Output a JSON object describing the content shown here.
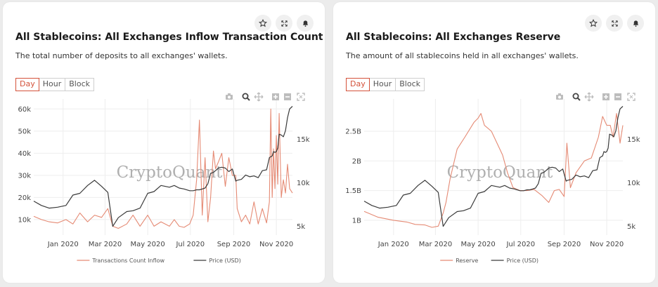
{
  "colors": {
    "inflow": "#e58a74",
    "price": "#3a3a3a",
    "accent": "#d4523a"
  },
  "icons": [
    "star-icon",
    "expand-icon",
    "bell-icon"
  ],
  "watermark": "CryptoQuant",
  "periods": [
    "Day",
    "Hour",
    "Block"
  ],
  "active_period": "Day",
  "modebar": [
    "camera-icon",
    "zoom-icon",
    "pan-icon",
    "zoom-in-icon",
    "zoom-out-icon",
    "autoscale-icon"
  ],
  "cards": [
    {
      "title": "All Stablecoins: All Exchanges Inflow Transaction Count",
      "subtitle": "The total number of deposits to all exchanges' wallets."
    },
    {
      "title": "All Stablecoins: All Exchanges Reserve",
      "subtitle": "The amount of all stablecoins held in all exchanges' wallets."
    }
  ],
  "chart_data": [
    {
      "type": "line",
      "x_ticks": [
        "Jan 2020",
        "Mar 2020",
        "May 2020",
        "Jul 2020",
        "Sep 2020",
        "Nov 2020"
      ],
      "y_left_ticks": [
        "10k",
        "20k",
        "30k",
        "40k",
        "50k",
        "60k"
      ],
      "y_right_ticks": [
        "5k",
        "10k",
        "15k"
      ],
      "y_left_range": [
        3000,
        62000
      ],
      "y_right_range": [
        4000,
        19000
      ],
      "legend": [
        "Transactions Count Inflow",
        "Price (USD)"
      ],
      "legend_position": "bottom",
      "grid": true,
      "series": [
        {
          "name": "Transactions Count Inflow",
          "axis": "left",
          "x": [
            "2019-11-20",
            "2019-12-01",
            "2019-12-12",
            "2019-12-24",
            "2020-01-05",
            "2020-01-15",
            "2020-01-25",
            "2020-02-05",
            "2020-02-15",
            "2020-02-25",
            "2020-03-05",
            "2020-03-12",
            "2020-03-20",
            "2020-04-01",
            "2020-04-10",
            "2020-04-20",
            "2020-05-01",
            "2020-05-10",
            "2020-05-20",
            "2020-06-01",
            "2020-06-08",
            "2020-06-15",
            "2020-06-22",
            "2020-06-30",
            "2020-07-05",
            "2020-07-10",
            "2020-07-14",
            "2020-07-18",
            "2020-07-22",
            "2020-07-26",
            "2020-07-30",
            "2020-08-03",
            "2020-08-06",
            "2020-08-10",
            "2020-08-15",
            "2020-08-20",
            "2020-08-25",
            "2020-08-30",
            "2020-09-04",
            "2020-09-06",
            "2020-09-12",
            "2020-09-18",
            "2020-09-24",
            "2020-09-30",
            "2020-10-06",
            "2020-10-12",
            "2020-10-18",
            "2020-10-22",
            "2020-10-24",
            "2020-10-26",
            "2020-10-28",
            "2020-10-30",
            "2020-11-01",
            "2020-11-03",
            "2020-11-05",
            "2020-11-08",
            "2020-11-11",
            "2020-11-14",
            "2020-11-17",
            "2020-11-20",
            "2020-11-24"
          ],
          "y": [
            11500,
            10000,
            9000,
            8500,
            10000,
            8000,
            13000,
            9000,
            12000,
            11000,
            15000,
            7000,
            6000,
            8000,
            12000,
            7000,
            12000,
            7000,
            9000,
            7000,
            10000,
            7000,
            6500,
            8000,
            12000,
            28000,
            55000,
            12000,
            38000,
            9000,
            20000,
            41000,
            33000,
            36000,
            40000,
            25000,
            38000,
            30000,
            30000,
            15000,
            9000,
            12000,
            8000,
            18000,
            8000,
            15000,
            8500,
            18000,
            60000,
            20000,
            42000,
            24000,
            48000,
            26000,
            58000,
            20000,
            28000,
            22000,
            35000,
            24000,
            22000
          ]
        },
        {
          "name": "Price (USD)",
          "axis": "right",
          "x": [
            "2019-11-20",
            "2019-12-01",
            "2019-12-12",
            "2019-12-24",
            "2020-01-05",
            "2020-01-15",
            "2020-01-25",
            "2020-02-05",
            "2020-02-15",
            "2020-02-25",
            "2020-03-05",
            "2020-03-12",
            "2020-03-20",
            "2020-04-01",
            "2020-04-10",
            "2020-04-20",
            "2020-05-01",
            "2020-05-10",
            "2020-05-20",
            "2020-06-01",
            "2020-06-08",
            "2020-06-15",
            "2020-06-22",
            "2020-06-30",
            "2020-07-05",
            "2020-07-10",
            "2020-07-14",
            "2020-07-18",
            "2020-07-22",
            "2020-07-26",
            "2020-07-30",
            "2020-08-03",
            "2020-08-06",
            "2020-08-10",
            "2020-08-15",
            "2020-08-20",
            "2020-08-25",
            "2020-08-30",
            "2020-09-04",
            "2020-09-06",
            "2020-09-12",
            "2020-09-18",
            "2020-09-24",
            "2020-09-30",
            "2020-10-06",
            "2020-10-12",
            "2020-10-18",
            "2020-10-22",
            "2020-10-24",
            "2020-10-26",
            "2020-10-28",
            "2020-10-30",
            "2020-11-01",
            "2020-11-03",
            "2020-11-05",
            "2020-11-08",
            "2020-11-11",
            "2020-11-14",
            "2020-11-17",
            "2020-11-20",
            "2020-11-24"
          ],
          "y": [
            7900,
            7400,
            7100,
            7200,
            7400,
            8600,
            8800,
            9700,
            10300,
            9600,
            8900,
            5000,
            6000,
            6700,
            6800,
            7100,
            8800,
            9000,
            9700,
            9500,
            9700,
            9400,
            9300,
            9100,
            9100,
            9200,
            9200,
            9300,
            9400,
            9900,
            11100,
            11200,
            11400,
            11700,
            11800,
            11700,
            11300,
            11600,
            10200,
            10300,
            10400,
            10900,
            10700,
            10800,
            10600,
            11400,
            11500,
            12900,
            13000,
            13100,
            13600,
            13500,
            13600,
            14000,
            15600,
            15500,
            15300,
            16000,
            17500,
            18500,
            18800
          ]
        }
      ]
    },
    {
      "type": "line",
      "x_ticks": [
        "Jan 2020",
        "Mar 2020",
        "May 2020",
        "Jul 2020",
        "Sep 2020",
        "Nov 2020"
      ],
      "y_left_ticks": [
        "1B",
        "1.5B",
        "2B",
        "2.5B"
      ],
      "y_right_ticks": [
        "5k",
        "10k",
        "15k"
      ],
      "y_left_range": [
        0.75,
        2.95
      ],
      "y_right_range": [
        4000,
        19000
      ],
      "legend": [
        "Reserve",
        "Price (USD)"
      ],
      "legend_position": "bottom",
      "grid": true,
      "series": [
        {
          "name": "Reserve",
          "axis": "left",
          "unit": "B",
          "x": [
            "2019-11-20",
            "2019-12-10",
            "2020-01-01",
            "2020-01-20",
            "2020-02-01",
            "2020-02-15",
            "2020-02-25",
            "2020-03-05",
            "2020-03-12",
            "2020-03-16",
            "2020-03-22",
            "2020-04-01",
            "2020-04-12",
            "2020-04-25",
            "2020-05-01",
            "2020-05-05",
            "2020-05-10",
            "2020-05-20",
            "2020-05-28",
            "2020-06-05",
            "2020-06-12",
            "2020-06-20",
            "2020-06-30",
            "2020-07-10",
            "2020-07-20",
            "2020-07-31",
            "2020-08-10",
            "2020-08-18",
            "2020-08-25",
            "2020-09-01",
            "2020-09-05",
            "2020-09-10",
            "2020-09-18",
            "2020-09-30",
            "2020-10-10",
            "2020-10-20",
            "2020-10-26",
            "2020-11-01",
            "2020-11-06",
            "2020-11-10",
            "2020-11-15",
            "2020-11-20",
            "2020-11-24"
          ],
          "y": [
            1.15,
            1.05,
            1.0,
            0.97,
            0.93,
            0.92,
            0.88,
            0.9,
            1.12,
            1.3,
            1.7,
            2.2,
            2.4,
            2.65,
            2.72,
            2.8,
            2.6,
            2.5,
            2.3,
            2.1,
            1.8,
            1.55,
            1.5,
            1.5,
            1.52,
            1.42,
            1.3,
            1.5,
            1.52,
            1.4,
            2.3,
            1.55,
            1.8,
            2.0,
            2.05,
            2.4,
            2.75,
            2.6,
            2.6,
            2.4,
            2.8,
            2.3,
            2.6
          ]
        },
        {
          "name": "Price (USD)",
          "axis": "right",
          "x": [
            "2019-11-20",
            "2019-12-01",
            "2019-12-12",
            "2019-12-24",
            "2020-01-05",
            "2020-01-15",
            "2020-01-25",
            "2020-02-05",
            "2020-02-15",
            "2020-02-25",
            "2020-03-05",
            "2020-03-12",
            "2020-03-20",
            "2020-04-01",
            "2020-04-10",
            "2020-04-20",
            "2020-05-01",
            "2020-05-10",
            "2020-05-20",
            "2020-06-01",
            "2020-06-08",
            "2020-06-15",
            "2020-06-22",
            "2020-06-30",
            "2020-07-05",
            "2020-07-10",
            "2020-07-14",
            "2020-07-18",
            "2020-07-22",
            "2020-07-26",
            "2020-07-30",
            "2020-08-03",
            "2020-08-06",
            "2020-08-10",
            "2020-08-15",
            "2020-08-20",
            "2020-08-25",
            "2020-08-30",
            "2020-09-04",
            "2020-09-06",
            "2020-09-12",
            "2020-09-18",
            "2020-09-24",
            "2020-09-30",
            "2020-10-06",
            "2020-10-12",
            "2020-10-18",
            "2020-10-22",
            "2020-10-24",
            "2020-10-26",
            "2020-10-28",
            "2020-10-30",
            "2020-11-01",
            "2020-11-03",
            "2020-11-05",
            "2020-11-08",
            "2020-11-11",
            "2020-11-14",
            "2020-11-17",
            "2020-11-20",
            "2020-11-24"
          ],
          "y": [
            7900,
            7400,
            7100,
            7200,
            7400,
            8600,
            8800,
            9700,
            10300,
            9600,
            8900,
            5000,
            6000,
            6700,
            6800,
            7100,
            8800,
            9000,
            9700,
            9500,
            9700,
            9400,
            9300,
            9100,
            9100,
            9200,
            9200,
            9300,
            9400,
            9900,
            11100,
            11200,
            11400,
            11700,
            11800,
            11700,
            11300,
            11600,
            10200,
            10300,
            10400,
            10900,
            10700,
            10800,
            10600,
            11400,
            11500,
            12900,
            13000,
            13100,
            13600,
            13500,
            13600,
            14000,
            15600,
            15500,
            15300,
            16000,
            17500,
            18500,
            18800
          ]
        }
      ]
    }
  ]
}
